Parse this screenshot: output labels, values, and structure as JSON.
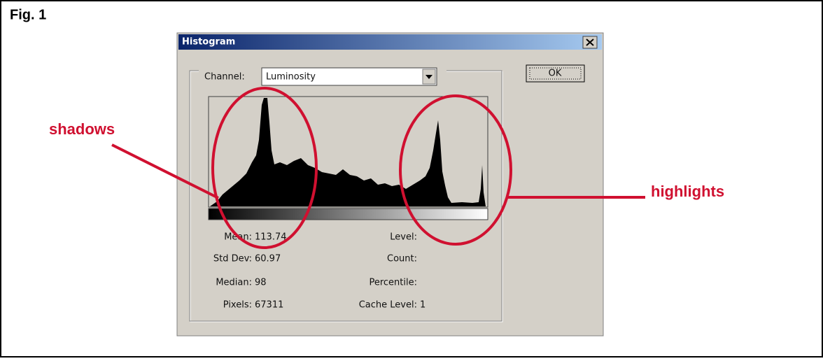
{
  "figure_label": "Fig. 1",
  "window": {
    "title": "Histogram",
    "channel_label": "Channel:",
    "channel_value": "Luminosity",
    "ok_button": "OK"
  },
  "stats": {
    "left": [
      {
        "label": "Mean:",
        "value": "113.74"
      },
      {
        "label": "Std Dev:",
        "value": "60.97"
      },
      {
        "label": "Median:",
        "value": "98"
      },
      {
        "label": "Pixels:",
        "value": "67311"
      }
    ],
    "right": [
      {
        "label": "Level:"
      },
      {
        "label": "Count:"
      },
      {
        "label": "Percentile:"
      },
      {
        "label": "Cache Level:",
        "value": "1"
      }
    ]
  },
  "annotations": {
    "shadows": "shadows",
    "highlights": "highlights"
  }
}
